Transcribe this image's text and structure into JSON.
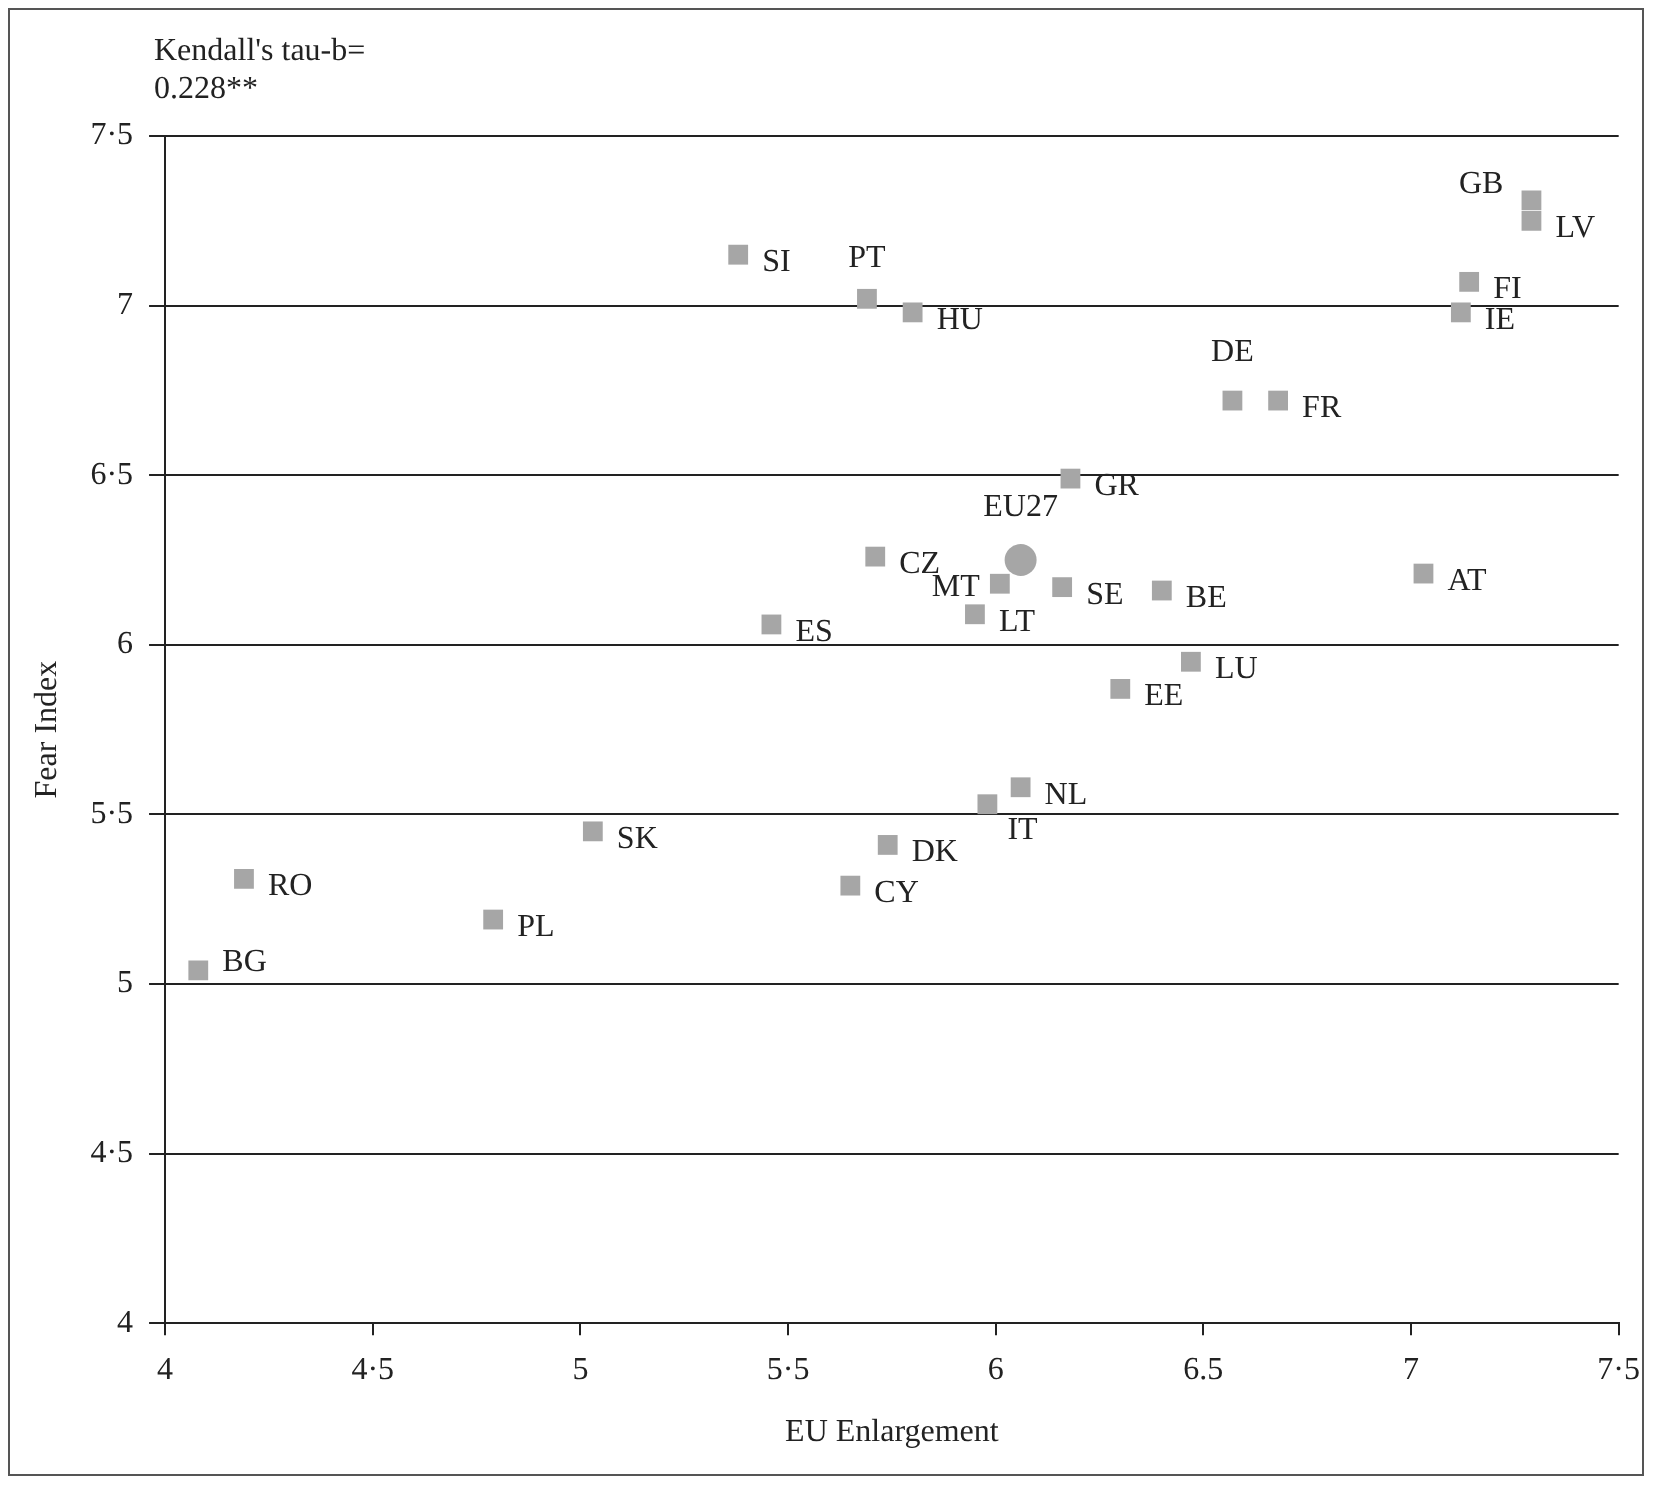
{
  "chart_data": {
    "type": "scatter",
    "xlabel": "EU Enlargement",
    "ylabel": "Fear Index",
    "xlim": [
      4,
      7.5
    ],
    "ylim": [
      4,
      7.5
    ],
    "xticks": [
      4,
      {
        "value": 4.5,
        "label": "4·5"
      },
      5,
      {
        "value": 5.5,
        "label": "5·5"
      },
      6,
      {
        "value": 6.5,
        "label": "6.5"
      },
      7,
      {
        "value": 7.5,
        "label": "7·5"
      }
    ],
    "yticks": [
      4,
      {
        "value": 4.5,
        "label": "4·5"
      },
      5,
      {
        "value": 5.5,
        "label": "5·5"
      },
      6,
      {
        "value": 6.5,
        "label": "6·5"
      },
      7,
      {
        "value": 7.5,
        "label": "7·5"
      }
    ],
    "grid": "y",
    "legend": false,
    "series": [
      {
        "color": "#a6a6a6",
        "marker": "square",
        "x": [
          5.38,
          5.69,
          5.8,
          7.29,
          7.29,
          7.14,
          7.12,
          6.57,
          6.68,
          6.18,
          5.71,
          6.01,
          6.16,
          6.4,
          5.95,
          5.46,
          7.03,
          6.47,
          6.3,
          6.06,
          5.98,
          5.74,
          5.65,
          5.03,
          4.19,
          4.79,
          4.08
        ],
        "values": [
          7.15,
          7.02,
          6.98,
          7.31,
          7.25,
          7.07,
          6.98,
          6.72,
          6.72,
          6.49,
          6.26,
          6.18,
          6.17,
          6.16,
          6.09,
          6.06,
          6.21,
          5.95,
          5.87,
          5.58,
          5.53,
          5.41,
          5.29,
          5.45,
          5.31,
          5.19,
          5.04
        ]
      },
      {
        "color": "#a6a6a6",
        "marker": "circle",
        "x": [
          6.06
        ],
        "values": [
          6.25
        ]
      }
    ],
    "annotations": [
      "Kendall's tau-b= 0.228**",
      {
        "text": "SI",
        "x": 5.38,
        "y": 7.15
      },
      {
        "text": "PT",
        "x": 5.69,
        "y": 7.02
      },
      {
        "text": "HU",
        "x": 5.8,
        "y": 6.98
      },
      {
        "text": "GB",
        "x": 7.29,
        "y": 7.31
      },
      {
        "text": "LV",
        "x": 7.29,
        "y": 7.25
      },
      {
        "text": "FI",
        "x": 7.14,
        "y": 7.07
      },
      {
        "text": "IE",
        "x": 7.12,
        "y": 6.98
      },
      {
        "text": "DE",
        "x": 6.57,
        "y": 6.72
      },
      {
        "text": "FR",
        "x": 6.68,
        "y": 6.72
      },
      {
        "text": "GR",
        "x": 6.18,
        "y": 6.49
      },
      {
        "text": "CZ",
        "x": 5.71,
        "y": 6.26
      },
      {
        "text": "MT",
        "x": 6.01,
        "y": 6.18
      },
      {
        "text": "SE",
        "x": 6.16,
        "y": 6.17
      },
      {
        "text": "BE",
        "x": 6.4,
        "y": 6.16
      },
      {
        "text": "LT",
        "x": 5.95,
        "y": 6.09
      },
      {
        "text": "ES",
        "x": 5.46,
        "y": 6.06
      },
      {
        "text": "AT",
        "x": 7.03,
        "y": 6.21
      },
      {
        "text": "LU",
        "x": 6.47,
        "y": 5.95
      },
      {
        "text": "EE",
        "x": 6.3,
        "y": 5.87
      },
      {
        "text": "NL",
        "x": 6.06,
        "y": 5.58
      },
      {
        "text": "IT",
        "x": 5.98,
        "y": 5.53
      },
      {
        "text": "DK",
        "x": 5.74,
        "y": 5.41
      },
      {
        "text": "CY",
        "x": 5.65,
        "y": 5.29
      },
      {
        "text": "SK",
        "x": 5.03,
        "y": 5.45
      },
      {
        "text": "RO",
        "x": 4.19,
        "y": 5.31
      },
      {
        "text": "PL",
        "x": 4.79,
        "y": 5.19
      },
      {
        "text": "BG",
        "x": 4.08,
        "y": 5.04
      },
      {
        "text": "EU27",
        "x": 6.06,
        "y": 6.25
      }
    ]
  }
}
